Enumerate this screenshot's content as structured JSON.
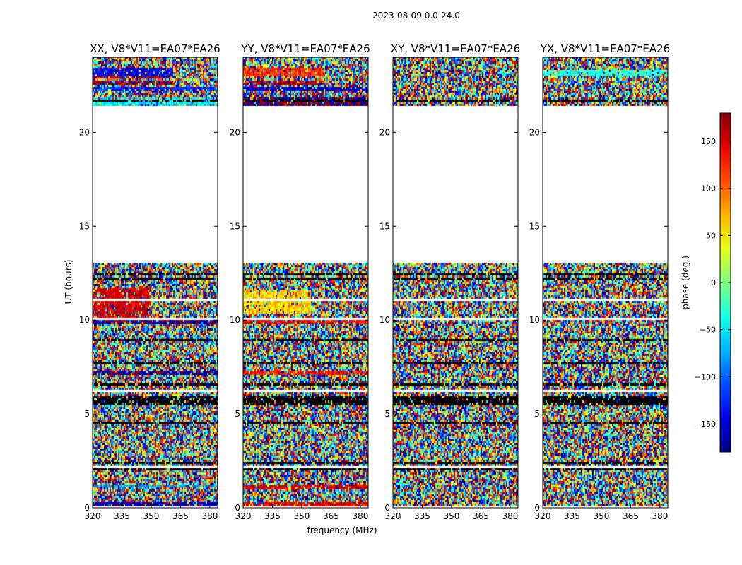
{
  "chart_data": {
    "type": "heatmap",
    "title": "2023-08-09 0.0-24.0",
    "xlabel": "frequency (MHz)",
    "ylabel": "UT (hours)",
    "xlim": [
      320,
      384
    ],
    "ylim": [
      0,
      24
    ],
    "x_ticks": [
      320,
      335,
      350,
      365,
      380
    ],
    "y_ticks": [
      0,
      5,
      10,
      15,
      20
    ],
    "panels": [
      {
        "name": "XX",
        "title": "XX, V8*V11=EA07*EA26",
        "mode": "xx",
        "coherent": [
          {
            "t": [
              23.0,
              23.4
            ],
            "f": [
              320,
              361
            ],
            "phase": -140
          },
          {
            "t": [
              22.9,
              23.05
            ],
            "f": [
              320,
              361
            ],
            "phase": 160
          },
          {
            "t": [
              22.55,
              22.75
            ],
            "f": [
              320,
              361
            ],
            "phase": 170
          },
          {
            "t": [
              22.2,
              22.4
            ],
            "f": [
              320,
              384
            ],
            "phase": -120
          },
          {
            "t": [
              21.45,
              21.85
            ],
            "f": [
              320,
              384
            ],
            "phase": -50
          },
          {
            "t": [
              10.0,
              11.7
            ],
            "f": [
              320,
              350
            ],
            "phase": 150
          },
          {
            "t": [
              9.75,
              9.95
            ],
            "f": [
              320,
              384
            ],
            "phase": -170
          },
          {
            "t": [
              7.1,
              7.3
            ],
            "f": [
              320,
              384
            ],
            "phase": -165
          },
          {
            "t": [
              1.1,
              1.25
            ],
            "f": [
              320,
              384
            ],
            "phase": -80
          },
          {
            "t": [
              0.1,
              0.3
            ],
            "f": [
              320,
              384
            ],
            "phase": -160
          }
        ]
      },
      {
        "name": "YY",
        "title": "YY, V8*V11=EA07*EA26",
        "mode": "yy",
        "coherent": [
          {
            "t": [
              23.0,
              23.4
            ],
            "f": [
              320,
              361
            ],
            "phase": 120
          },
          {
            "t": [
              22.55,
              22.75
            ],
            "f": [
              320,
              361
            ],
            "phase": 165
          },
          {
            "t": [
              22.2,
              22.4
            ],
            "f": [
              320,
              384
            ],
            "phase": -150
          },
          {
            "t": [
              21.45,
              21.85
            ],
            "f": [
              320,
              384
            ],
            "phase": -175
          },
          {
            "t": [
              10.4,
              11.6
            ],
            "f": [
              320,
              355
            ],
            "phase": 60
          },
          {
            "t": [
              9.75,
              9.95
            ],
            "f": [
              320,
              384
            ],
            "phase": 140
          },
          {
            "t": [
              7.1,
              7.3
            ],
            "f": [
              320,
              384
            ],
            "phase": 130
          },
          {
            "t": [
              1.0,
              1.2
            ],
            "f": [
              320,
              384
            ],
            "phase": 150
          },
          {
            "t": [
              0.0,
              0.25
            ],
            "f": [
              320,
              384
            ],
            "phase": 140
          }
        ]
      },
      {
        "name": "XY",
        "title": "XY, V8*V11=EA07*EA26",
        "mode": "xy",
        "coherent": []
      },
      {
        "name": "YX",
        "title": "YX, V8*V11=EA07*EA26",
        "mode": "yx",
        "coherent": [
          {
            "t": [
              23.0,
              23.3
            ],
            "f": [
              320,
              384
            ],
            "phase": -30
          }
        ]
      }
    ],
    "gap_hours": [
      13.0,
      21.4
    ],
    "colorbar": {
      "label": "phase (deg.)",
      "range": [
        -180,
        180
      ],
      "ticks": [
        150,
        100,
        50,
        0,
        -50,
        -100,
        -150
      ],
      "tick_labels": [
        "150",
        "100",
        "50",
        "0",
        "−50",
        "−100",
        "−150"
      ],
      "colormap": "jet"
    }
  }
}
